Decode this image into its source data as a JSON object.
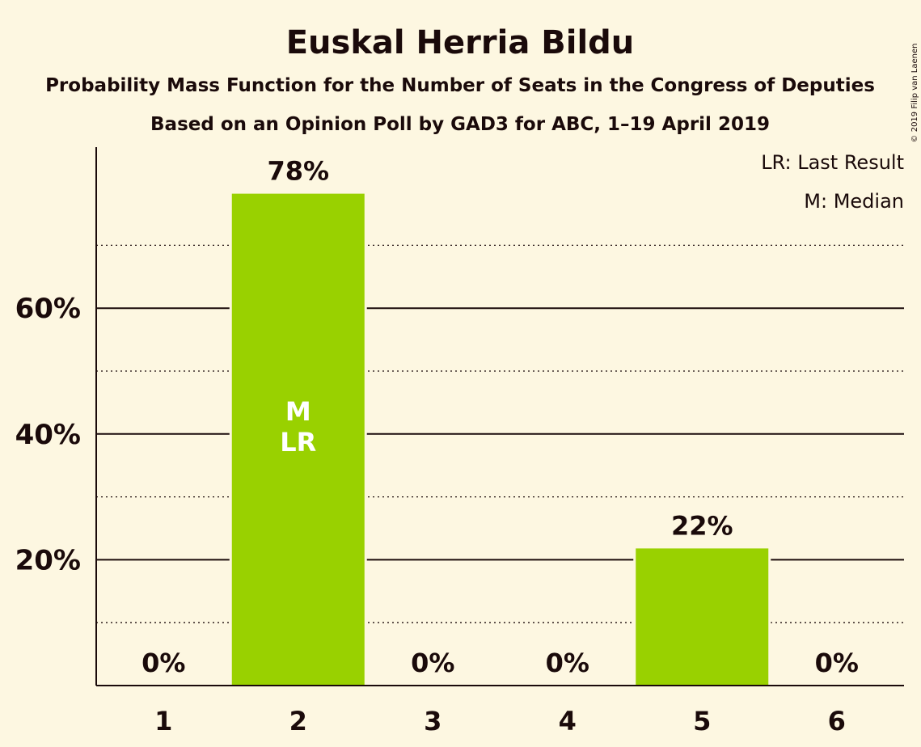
{
  "chart_data": {
    "type": "bar",
    "title": "Euskal Herria Bildu",
    "subtitle": "Probability Mass Function for the Number of Seats in the Congress of Deputies",
    "subtitle2": "Based on an Opinion Poll by GAD3 for ABC, 1–19 April 2019",
    "categories": [
      "1",
      "2",
      "3",
      "4",
      "5",
      "6"
    ],
    "values": [
      0,
      78,
      0,
      0,
      22,
      0
    ],
    "value_labels": [
      "0%",
      "78%",
      "0%",
      "0%",
      "22%",
      "0%"
    ],
    "exact_values": [
      0,
      78.2,
      0,
      0,
      21.8,
      0
    ],
    "ylim": [
      0,
      85
    ],
    "yticks": [
      20,
      40,
      60
    ],
    "ytick_labels": [
      "20%",
      "40%",
      "60%"
    ],
    "minor_gridlines": [
      10,
      30,
      50,
      70
    ],
    "bar_color": "#99d100",
    "bar_annotations": [
      {
        "category": "2",
        "lines": [
          "M",
          "LR"
        ]
      }
    ],
    "legend": [
      "LR: Last Result",
      "M: Median"
    ],
    "legend_position": "top-right",
    "copyright": "© 2019 Filip van Laenen"
  }
}
